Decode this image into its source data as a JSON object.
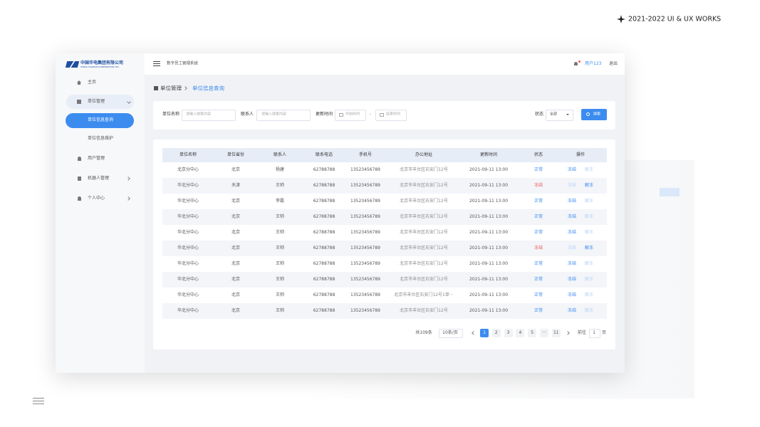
{
  "header": {
    "title": "2021-2022 UI &  UX WORKS"
  },
  "logo": {
    "name": "中国华电集团有限公司",
    "name_en": "CHINA HUADIAN CORPORATION LTD."
  },
  "system_title": "数字员工管理系统",
  "user": "用户123",
  "logout": "退出",
  "sidebar": [
    {
      "label": "主页"
    },
    {
      "label": "单位管理",
      "children": [
        "单位信息查询",
        "单位信息维护"
      ]
    },
    {
      "label": "用户管理"
    },
    {
      "label": "机器人管理"
    },
    {
      "label": "个人中心"
    }
  ],
  "breadcrumb": [
    "单位管理",
    "单位信息查询"
  ],
  "filters": {
    "unit_name": {
      "label": "单位名称",
      "placeholder": "请输入搜索内容"
    },
    "contact": {
      "label": "联系人",
      "placeholder": "请输入搜索内容"
    },
    "update_time": {
      "label": "更新时间",
      "start": "开始时间",
      "separator": "-",
      "end": "结束时间"
    },
    "status": {
      "label": "状态",
      "value": "全部"
    },
    "search": "搜索"
  },
  "table": {
    "columns": [
      "单位名称",
      "单位省份",
      "联系人",
      "联系电话",
      "手机号",
      "办公地址",
      "更新时间",
      "状态",
      "操作"
    ],
    "actions": [
      "冻结",
      "解冻"
    ],
    "rows": [
      [
        "北京分中心",
        "北京",
        "杨建",
        "62788788",
        "13523456789",
        "北京市丰台区右安门12号",
        "2021-09-11  13:00",
        "正常"
      ],
      [
        "华北分中心",
        "天津",
        "王帅",
        "62788788",
        "13523456789",
        "北京市丰台区右安门12号",
        "2021-09-11  13:00",
        "冻结"
      ],
      [
        "华北分中心",
        "北京",
        "李磊",
        "62788788",
        "13523456789",
        "北京市丰台区右安门12号",
        "2021-09-11  13:00",
        "正常"
      ],
      [
        "华北分中心",
        "北京",
        "王帅",
        "62788788",
        "13523456789",
        "北京市丰台区右安门12号",
        "2021-09-11  13:00",
        "正常"
      ],
      [
        "华北分中心",
        "北京",
        "王帅",
        "62788788",
        "13523456789",
        "北京市丰台区右安门12号",
        "2021-09-11  13:00",
        "正常"
      ],
      [
        "华北分中心",
        "北京",
        "王帅",
        "62788788",
        "13523456789",
        "北京市丰台区右安门12号",
        "2021-09-11  13:00",
        "冻结"
      ],
      [
        "华北分中心",
        "北京",
        "王帅",
        "62788788",
        "13523456789",
        "北京市丰台区右安门12号",
        "2021-09-11  13:00",
        "正常"
      ],
      [
        "华北分中心",
        "北京",
        "王帅",
        "62788788",
        "13523456789",
        "北京市丰台区右安门12号",
        "2021-09-11  13:00",
        "正常"
      ],
      [
        "华北分中心",
        "北京",
        "王帅",
        "62788788",
        "13523456789",
        "北京市丰台区右安门12号1单···",
        "2021-09-11  13:00",
        "正常"
      ],
      [
        "华北分中心",
        "北京",
        "王帅",
        "62788788",
        "13523456789",
        "北京市丰台区右安门12号",
        "2021-09-11  13:00",
        "正常"
      ]
    ]
  },
  "pagination": {
    "total": "共109条",
    "page_size": "10条/页",
    "pages": [
      "1",
      "2",
      "3",
      "4",
      "5",
      "···",
      "11"
    ],
    "goto": "前往",
    "goto_value": "1",
    "goto_unit": "页"
  }
}
